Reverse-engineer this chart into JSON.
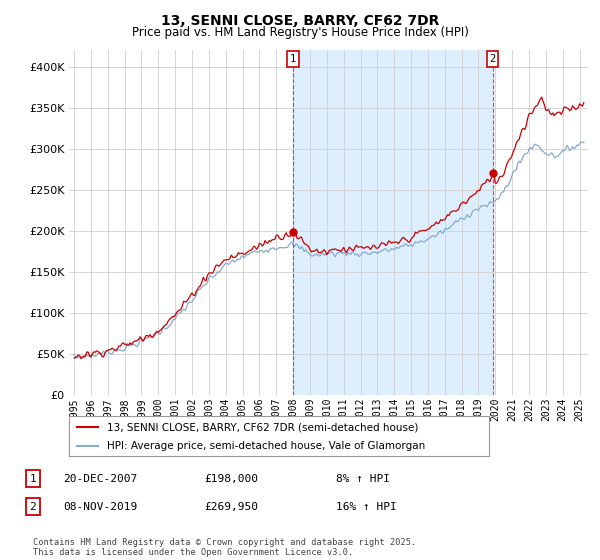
{
  "title": "13, SENNI CLOSE, BARRY, CF62 7DR",
  "subtitle": "Price paid vs. HM Land Registry's House Price Index (HPI)",
  "bg_color": "#ffffff",
  "plot_bg_color": "#ffffff",
  "grid_color": "#d0d0d0",
  "shade_color": "#ddeeff",
  "line_red": "#cc0000",
  "line_blue": "#88aacc",
  "annotation1_year": 2007.97,
  "annotation2_year": 2019.87,
  "purchase1_price": 198000,
  "purchase2_price": 269950,
  "legend_entries": [
    "13, SENNI CLOSE, BARRY, CF62 7DR (semi-detached house)",
    "HPI: Average price, semi-detached house, Vale of Glamorgan"
  ],
  "note1_box": "1",
  "note1_date": "20-DEC-2007",
  "note1_price": "£198,000",
  "note1_pct": "8% ↑ HPI",
  "note2_box": "2",
  "note2_date": "08-NOV-2019",
  "note2_price": "£269,950",
  "note2_pct": "16% ↑ HPI",
  "footer": "Contains HM Land Registry data © Crown copyright and database right 2025.\nThis data is licensed under the Open Government Licence v3.0.",
  "ylim_min": 0,
  "ylim_max": 420000,
  "yticks": [
    0,
    50000,
    100000,
    150000,
    200000,
    250000,
    300000,
    350000,
    400000
  ],
  "xlim_min": 1994.7,
  "xlim_max": 2025.5
}
